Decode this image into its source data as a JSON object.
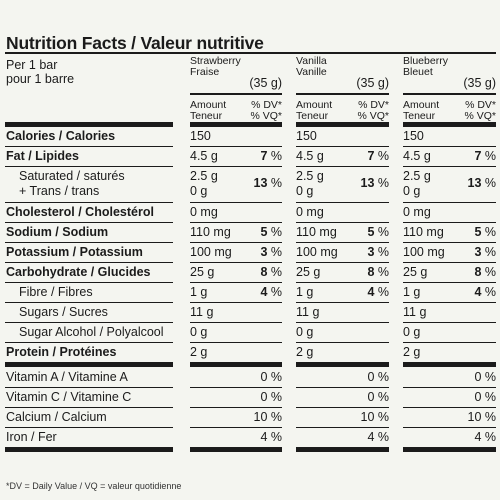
{
  "title": "Nutrition Facts / Valeur nutritive",
  "per_line1": "Per 1 bar",
  "per_line2": "pour 1 barre",
  "amount_header": [
    "Amount",
    "Teneur"
  ],
  "dv_header": [
    "% DV*",
    "% VQ*"
  ],
  "columns": [
    {
      "name": [
        "Strawberry",
        "Fraise"
      ],
      "serving": "(35 g)"
    },
    {
      "name": [
        "Vanilla",
        "Vanille"
      ],
      "serving": "(35 g)"
    },
    {
      "name": [
        "Blueberry",
        "Bleuet"
      ],
      "serving": "(35 g)"
    }
  ],
  "rows": [
    {
      "label": "Calories / Calories",
      "bold": true,
      "values": [
        [
          "150",
          ""
        ],
        [
          "150",
          ""
        ],
        [
          "150",
          ""
        ]
      ]
    },
    {
      "label": "Fat / Lipides",
      "bold": true,
      "values": [
        [
          "4.5 g",
          "7"
        ],
        [
          "4.5 g",
          "7"
        ],
        [
          "4.5 g",
          "7"
        ]
      ]
    },
    {
      "label": "Saturated / saturés",
      "label2": "+ Trans / trans",
      "values": [
        [
          "2.5 g",
          "13"
        ],
        [
          "2.5 g",
          "13"
        ],
        [
          "2.5 g",
          "13"
        ]
      ],
      "values2": [
        "0 g",
        "0 g",
        "0 g"
      ]
    },
    {
      "label": "Cholesterol / Cholestérol",
      "bold": true,
      "values": [
        [
          "0 mg",
          ""
        ],
        [
          "0 mg",
          ""
        ],
        [
          "0 mg",
          ""
        ]
      ]
    },
    {
      "label": "Sodium / Sodium",
      "bold": true,
      "values": [
        [
          "110 mg",
          "5"
        ],
        [
          "110 mg",
          "5"
        ],
        [
          "110 mg",
          "5"
        ]
      ]
    },
    {
      "label": "Potassium / Potassium",
      "bold": true,
      "values": [
        [
          "100 mg",
          "3"
        ],
        [
          "100 mg",
          "3"
        ],
        [
          "100 mg",
          "3"
        ]
      ]
    },
    {
      "label": "Carbohydrate / Glucides",
      "bold": true,
      "values": [
        [
          "25 g",
          "8"
        ],
        [
          "25 g",
          "8"
        ],
        [
          "25 g",
          "8"
        ]
      ]
    },
    {
      "label": "Fibre / Fibres",
      "values": [
        [
          "1 g",
          "4"
        ],
        [
          "1 g",
          "4"
        ],
        [
          "1 g",
          "4"
        ]
      ]
    },
    {
      "label": "Sugars / Sucres",
      "values": [
        [
          "11 g",
          ""
        ],
        [
          "11 g",
          ""
        ],
        [
          "11 g",
          ""
        ]
      ]
    },
    {
      "label": "Sugar Alcohol / Polyalcool",
      "values": [
        [
          "0 g",
          ""
        ],
        [
          "0 g",
          ""
        ],
        [
          "0 g",
          ""
        ]
      ]
    },
    {
      "label": "Protein / Protéines",
      "bold": true,
      "values": [
        [
          "2 g",
          ""
        ],
        [
          "2 g",
          ""
        ],
        [
          "2 g",
          ""
        ]
      ]
    },
    {
      "label": "Vitamin A / Vitamine A",
      "values": [
        [
          "",
          "0"
        ],
        [
          "",
          "0"
        ],
        [
          "",
          "0"
        ]
      ]
    },
    {
      "label": "Vitamin C / Vitamine C",
      "values": [
        [
          "",
          "0"
        ],
        [
          "",
          "0"
        ],
        [
          "",
          "0"
        ]
      ]
    },
    {
      "label": "Calcium / Calcium",
      "values": [
        [
          "",
          "10"
        ],
        [
          "",
          "10"
        ],
        [
          "",
          "10"
        ]
      ]
    },
    {
      "label": "Iron / Fer",
      "values": [
        [
          "",
          "4"
        ],
        [
          "",
          "4"
        ],
        [
          "",
          "4"
        ]
      ]
    }
  ],
  "footnote": "*DV = Daily Value / VQ = valeur quotidienne"
}
